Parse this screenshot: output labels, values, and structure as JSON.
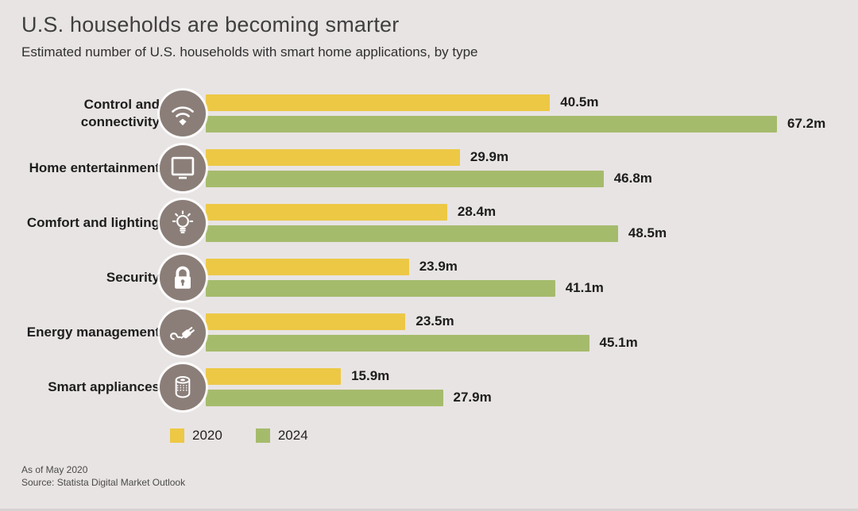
{
  "header": {
    "title": "U.S. households are becoming smarter",
    "subtitle": "Estimated number of U.S. households with smart home applications, by type"
  },
  "chart_data": {
    "type": "bar",
    "orientation": "horizontal",
    "unit": "million households",
    "value_suffix": "m",
    "categories": [
      "Control and\nconnectivity",
      "Home entertainment",
      "Comfort and lighting",
      "Security",
      "Energy management",
      "Smart appliances"
    ],
    "category_icons": [
      "wifi-icon",
      "tv-icon",
      "lightbulb-icon",
      "lock-icon",
      "plug-icon",
      "smart-speaker-icon"
    ],
    "series": [
      {
        "name": "2020",
        "color": "#edc845",
        "values": [
          40.5,
          29.9,
          28.4,
          23.9,
          23.5,
          15.9
        ]
      },
      {
        "name": "2024",
        "color": "#a5bb6c",
        "values": [
          67.2,
          46.8,
          48.5,
          41.1,
          45.1,
          27.9
        ]
      }
    ],
    "data_labels": [
      [
        "40.5m",
        "29.9m",
        "28.4m",
        "23.9m",
        "23.5m",
        "15.9m"
      ],
      [
        "67.2m",
        "46.8m",
        "48.5m",
        "41.1m",
        "45.1m",
        "27.9m"
      ]
    ],
    "xlim": [
      0,
      67.2
    ],
    "grid": false,
    "legend_position": "bottom-left"
  },
  "footer": {
    "as_of": "As of May 2020",
    "source": "Source: Statista Digital Market Outlook"
  },
  "colors": {
    "background": "#e8e4e3",
    "bar_2020": "#edc845",
    "bar_2024": "#a5bb6c",
    "icon_circle": "#8b7e78",
    "icon_glyph": "#ffffff",
    "title_text": "#3f3f3f",
    "subtitle_text": "#2f2f2f",
    "label_text": "#1d1d1d",
    "footer_text": "#4a4a4a"
  }
}
